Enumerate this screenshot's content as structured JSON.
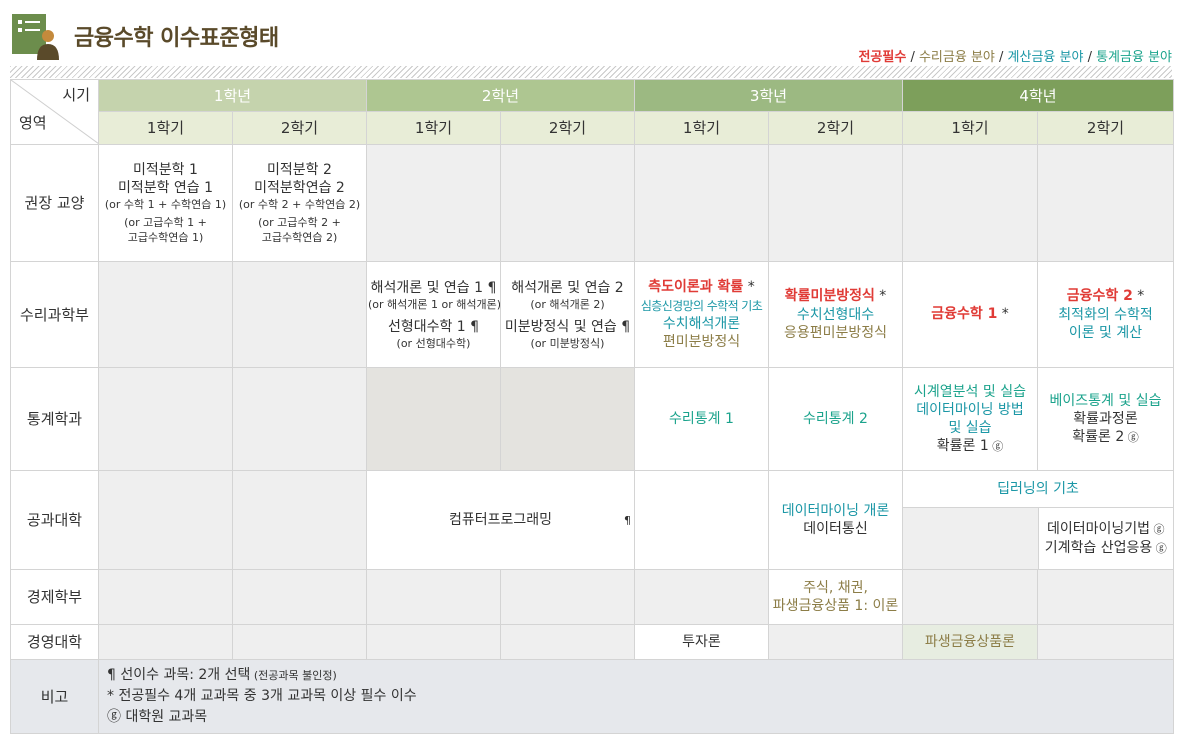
{
  "header": {
    "title": "금융수학 이수표준형태",
    "legend": {
      "required": "전공필수",
      "math": "수리금융 분야",
      "comp": "계산금융 분야",
      "stat": "통계금융 분야",
      "sep": " / "
    }
  },
  "colors": {
    "required": "#e03b36",
    "math": "#8c7d47",
    "comp": "#1b97a6",
    "stat": "#1ba38c"
  },
  "table": {
    "corner": {
      "period": "시기",
      "area": "영역"
    },
    "years": [
      "1학년",
      "2학년",
      "3학년",
      "4학년"
    ],
    "semesters": [
      "1학기",
      "2학기",
      "1학기",
      "2학기",
      "1학기",
      "2학기",
      "1학기",
      "2학기"
    ],
    "rows": {
      "liberal": {
        "label": "권장 교양",
        "y1s1": [
          "미적분학 1",
          "미적분학 연습 1",
          "(or 수학 1 + 수학연습 1)",
          "(or 고급수학 1 +",
          "고급수학연습 1)"
        ],
        "y1s2": [
          "미적분학 2",
          "미적분학연습 2",
          "(or 수학 2 + 수학연습 2)",
          "(or 고급수학 2 +",
          "고급수학연습 2)"
        ]
      },
      "math": {
        "label": "수리과학부",
        "y2s1": [
          "해석개론 및 연습 1 ¶",
          "(or 해석개론 1 or 해석개론)",
          "선형대수학 1 ¶",
          "(or 선형대수학)"
        ],
        "y2s2": [
          "해석개론 및 연습 2",
          "(or 해석개론 2)",
          "미분방정식 및 연습 ¶",
          "(or 미분방정식)"
        ],
        "y3s1": [
          "측도이론과 확률",
          " *",
          "심층신경망의 수학적 기초",
          "수치해석개론",
          "편미분방정식"
        ],
        "y3s2": [
          "확률미분방정식",
          " *",
          "수치선형대수",
          "응용편미분방정식"
        ],
        "y4s1": [
          "금융수학 1",
          " *"
        ],
        "y4s2": [
          "금융수학 2",
          " *",
          "최적화의 수학적",
          "이론 및 계산"
        ]
      },
      "stat": {
        "label": "통계학과",
        "y3s1": "수리통계 1",
        "y3s2": "수리통계 2",
        "y4s1": [
          "시계열분석 및 실습",
          "데이터마이닝 방법",
          "및 실습",
          "확률론 1",
          " ⓖ"
        ],
        "y4s2": [
          "베이즈통계 및 실습",
          "확률과정론",
          "확률론 2",
          " ⓖ"
        ]
      },
      "eng": {
        "label": "공과대학",
        "y2": "컴퓨터프로그래밍",
        "y2mark": "¶",
        "y3s2": [
          "데이터마이닝 개론",
          "데이터통신"
        ],
        "y4top": "딥러닝의 기초",
        "y4s2": [
          "데이터마이닝기법",
          " ⓖ",
          "기계학습 산업응용",
          " ⓖ"
        ]
      },
      "econ": {
        "label": "경제학부",
        "y3s2": [
          "주식, 채권,",
          "파생금융상품 1: 이론"
        ]
      },
      "biz": {
        "label": "경영대학",
        "y3s1": "투자론",
        "y4s1": "파생금융상품론"
      }
    },
    "remarks": {
      "label": "비고",
      "line1": "¶ 선이수 과목: 2개 선택",
      "line1_note": " (전공과목 불인정)",
      "line2": "* 전공필수 4개 교과목 중 3개 교과목 이상 필수 이수",
      "line3": "ⓖ 대학원 교과목"
    }
  }
}
